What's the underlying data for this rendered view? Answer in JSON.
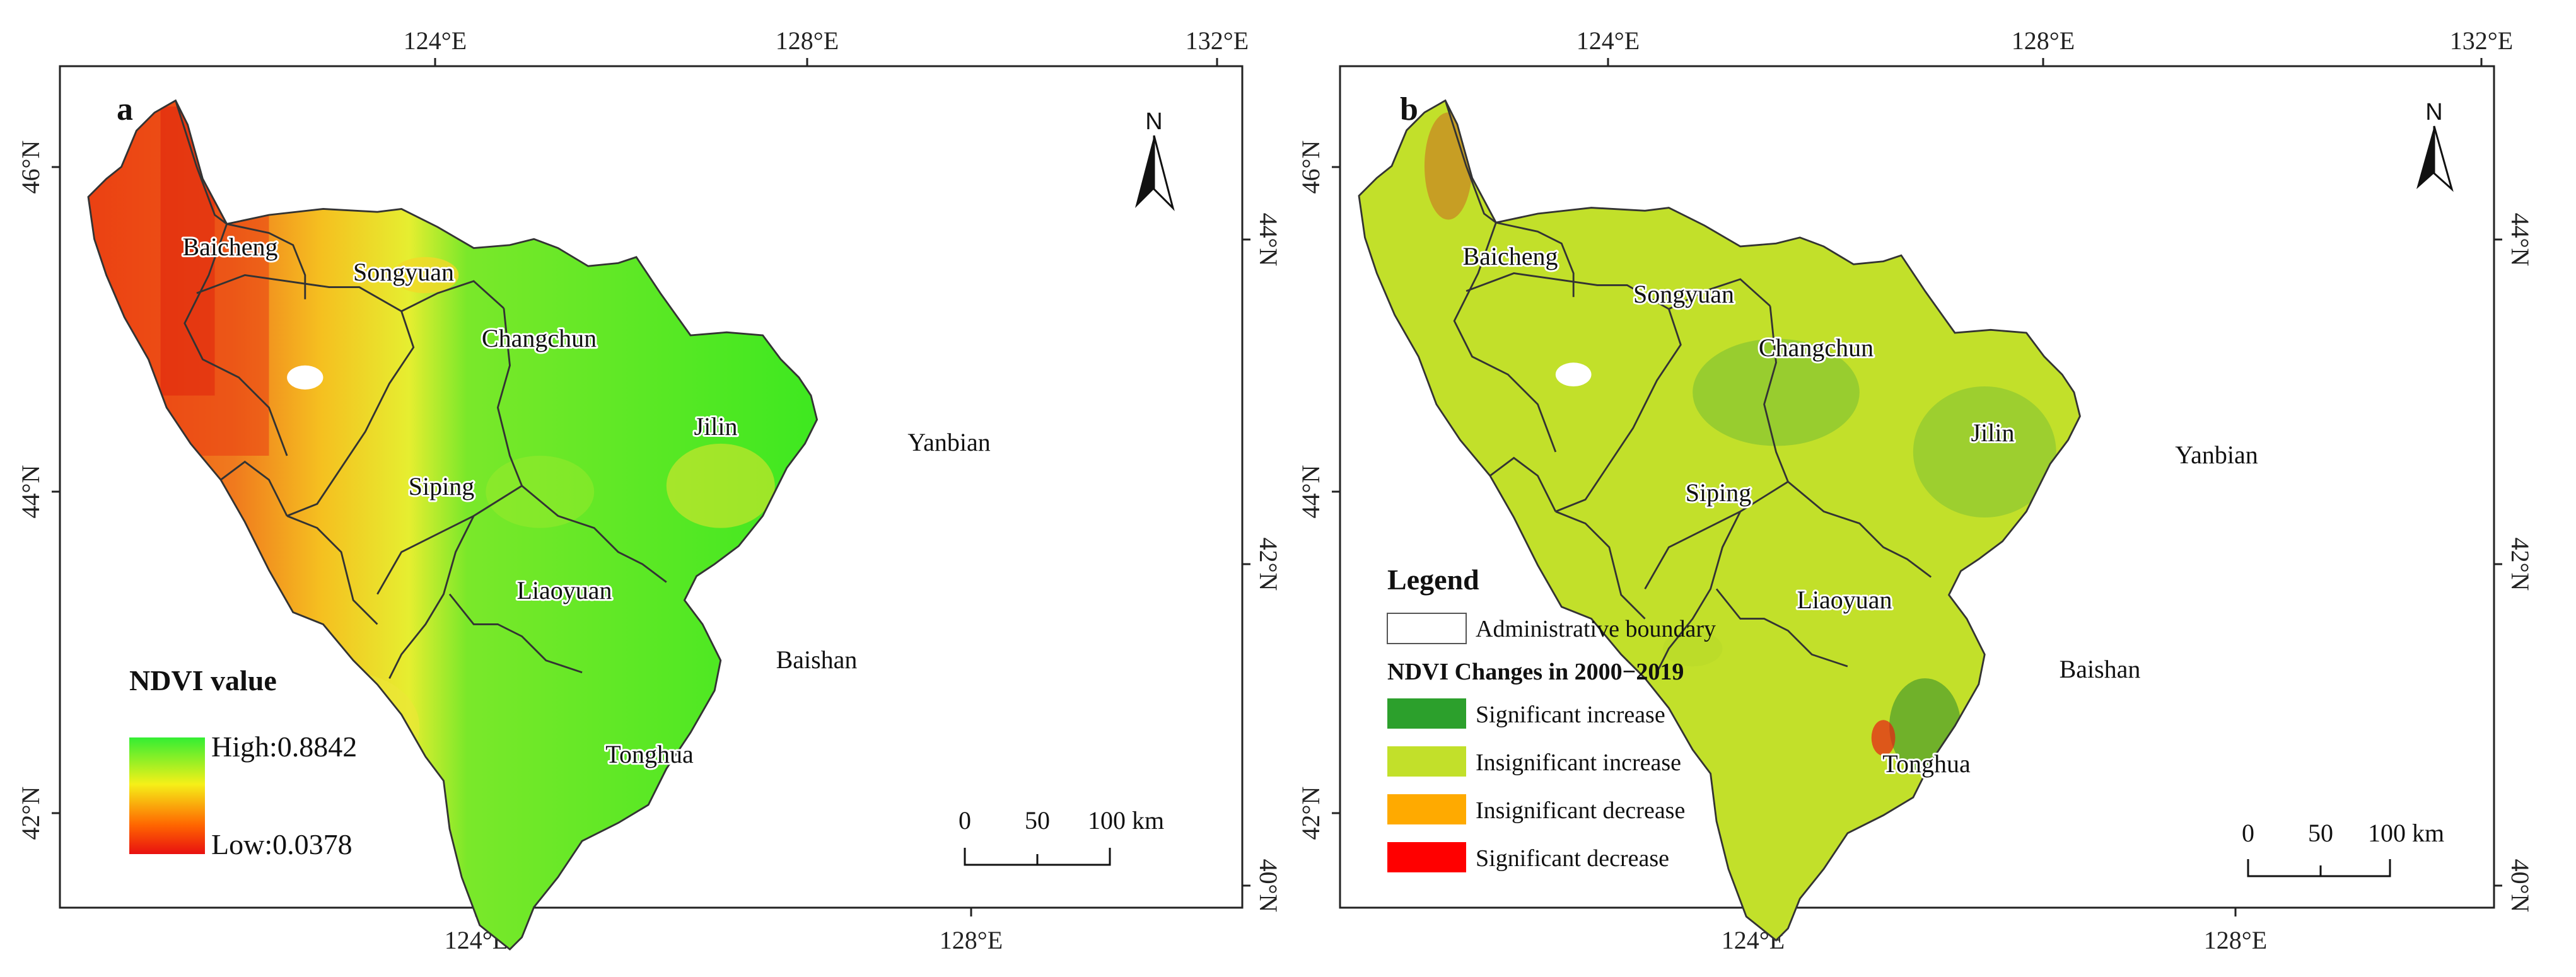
{
  "panel_a": {
    "letter": "a",
    "top_ticks": [
      "124°E",
      "128°E",
      "132°E"
    ],
    "bottom_ticks": [
      "124°E",
      "128°E"
    ],
    "left_ticks": [
      "46°N",
      "44°N",
      "42°N"
    ],
    "right_ticks": [
      "44°N",
      "42°N",
      "40°N"
    ],
    "regions": [
      "Baicheng",
      "Songyuan",
      "Changchun",
      "Jilin",
      "Yanbian",
      "Siping",
      "Liaoyuan",
      "Baishan",
      "Tonghua"
    ],
    "legend": {
      "title": "NDVI value",
      "high": "High:0.8842",
      "low": "Low:0.0378",
      "colors": [
        "#33ee33",
        "#f5f018",
        "#ff6600",
        "#e81010"
      ]
    },
    "scale": {
      "labels": [
        "0",
        "50",
        "100 km"
      ]
    },
    "north": "N"
  },
  "panel_b": {
    "letter": "b",
    "top_ticks": [
      "124°E",
      "128°E",
      "132°E"
    ],
    "bottom_ticks": [
      "124°E",
      "128°E"
    ],
    "left_ticks": [
      "46°N",
      "44°N",
      "42°N"
    ],
    "right_ticks": [
      "44°N",
      "42°N",
      "40°N"
    ],
    "regions": [
      "Baicheng",
      "Songyuan",
      "Changchun",
      "Jilin",
      "Yanbian",
      "Siping",
      "Liaoyuan",
      "Baishan",
      "Tonghua"
    ],
    "legend": {
      "title": "Legend",
      "boundary": "Administrative boundary",
      "subtitle": "NDVI Changes in 2000−2019",
      "items": [
        {
          "label": "Significant increase",
          "color": "#2ca02c"
        },
        {
          "label": "Insignificant increase",
          "color": "#c2e02a"
        },
        {
          "label": "Insignificant decrease",
          "color": "#ffaa00"
        },
        {
          "label": "Significant decrease",
          "color": "#ff0000"
        }
      ]
    },
    "scale": {
      "labels": [
        "0",
        "50",
        "100 km"
      ]
    },
    "north": "N"
  },
  "colors": {
    "frame": "#222222",
    "boundary": "#333333",
    "ndvi_green": "#44ee22",
    "ndvi_yellow": "#f0e632",
    "ndvi_red": "#f05018",
    "trend_light": "#c2e02a",
    "trend_dark": "#4aa83a"
  }
}
